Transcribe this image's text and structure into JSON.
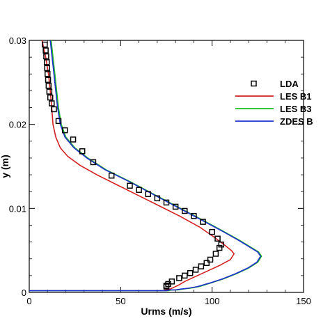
{
  "chart_data": {
    "type": "line",
    "xlabel": "Urms (m/s)",
    "ylabel": "y (m)",
    "xlim": [
      0,
      150
    ],
    "ylim": [
      0,
      0.03
    ],
    "x_ticks": [
      0,
      50,
      100,
      150
    ],
    "y_ticks": [
      0,
      0.01,
      0.02,
      0.03
    ],
    "x_tick_labels": [
      "0",
      "50",
      "100",
      "150"
    ],
    "y_tick_labels": [
      "0",
      "0.01",
      "0.02",
      "0.03"
    ],
    "grid": false,
    "legend_placement": "right",
    "series": [
      {
        "name": "LDA",
        "kind": "scatter",
        "marker": "square-open",
        "color": "#000000",
        "x": [
          8.5,
          9,
          9.3,
          9.6,
          9.8,
          10,
          10.3,
          10.6,
          11,
          11.5,
          12.3,
          13.5,
          16,
          19.5,
          24,
          29,
          35,
          45,
          55,
          60,
          65,
          70,
          75,
          80,
          85,
          90,
          95,
          100,
          103,
          105,
          104,
          102,
          99,
          97,
          94,
          91,
          88,
          85,
          82,
          78,
          76,
          75,
          75
        ],
        "y": [
          0.0295,
          0.0288,
          0.0281,
          0.0274,
          0.0267,
          0.026,
          0.0253,
          0.0246,
          0.0239,
          0.0232,
          0.0225,
          0.0218,
          0.0204,
          0.0193,
          0.0182,
          0.0168,
          0.0155,
          0.0139,
          0.0127,
          0.0122,
          0.0117,
          0.0112,
          0.0107,
          0.0102,
          0.0097,
          0.0091,
          0.0084,
          0.0072,
          0.0064,
          0.0057,
          0.0053,
          0.0046,
          0.0039,
          0.0035,
          0.0031,
          0.0027,
          0.0023,
          0.002,
          0.0017,
          0.0013,
          0.001,
          0.0008,
          0.0007
        ]
      },
      {
        "name": "LES B1",
        "kind": "line",
        "color": "#d42020",
        "x": [
          7,
          9,
          10.5,
          11.5,
          12.3,
          13,
          14.5,
          17,
          21,
          28,
          37,
          48,
          60,
          72,
          83,
          93,
          101,
          107,
          110.5,
          112,
          110,
          104,
          97,
          90,
          85,
          82,
          79,
          77,
          75,
          73,
          40,
          0
        ],
        "y": [
          0.03,
          0.028,
          0.026,
          0.024,
          0.022,
          0.02,
          0.0185,
          0.0172,
          0.0162,
          0.0151,
          0.014,
          0.0128,
          0.0115,
          0.0102,
          0.009,
          0.0078,
          0.0066,
          0.0056,
          0.005,
          0.0046,
          0.0039,
          0.0032,
          0.0025,
          0.0018,
          0.0013,
          0.0009,
          0.0006,
          0.0004,
          0.0003,
          0.0002,
          0.0002,
          0.0002
        ]
      },
      {
        "name": "LES B3",
        "kind": "line",
        "color": "#1ec01e",
        "x": [
          12,
          13,
          14,
          15,
          16,
          17.5,
          20,
          25,
          32,
          42,
          55,
          68,
          81,
          94,
          106,
          115,
          121,
          125.5,
          127,
          125,
          120,
          113,
          106,
          99,
          93,
          88,
          84,
          81,
          78,
          76,
          74,
          40,
          0
        ],
        "y": [
          0.03,
          0.028,
          0.026,
          0.024,
          0.022,
          0.02,
          0.0185,
          0.0172,
          0.016,
          0.0146,
          0.0132,
          0.0117,
          0.0102,
          0.0087,
          0.0073,
          0.0062,
          0.0054,
          0.0048,
          0.0043,
          0.0036,
          0.0029,
          0.0022,
          0.0016,
          0.0011,
          0.0007,
          0.0005,
          0.0004,
          0.0003,
          0.0003,
          0.0002,
          0.0002,
          0.0002,
          0.0002
        ]
      },
      {
        "name": "ZDES B",
        "kind": "line",
        "color": "#1f2fd0",
        "x": [
          11.5,
          12.5,
          13.5,
          14.5,
          15.5,
          17,
          19.5,
          24.5,
          31.5,
          41.5,
          54.5,
          67.5,
          80.5,
          93.5,
          105.5,
          114.5,
          120.5,
          125,
          126.5,
          124.5,
          119.5,
          112.5,
          105.5,
          98.5,
          92,
          87,
          83,
          80,
          77,
          75,
          73,
          40,
          0
        ],
        "y": [
          0.03,
          0.028,
          0.026,
          0.024,
          0.022,
          0.02,
          0.0185,
          0.0172,
          0.016,
          0.0146,
          0.0132,
          0.0117,
          0.0102,
          0.0087,
          0.0073,
          0.0062,
          0.0054,
          0.0048,
          0.0043,
          0.0036,
          0.0029,
          0.0022,
          0.0016,
          0.0011,
          0.0007,
          0.0005,
          0.0004,
          0.0003,
          0.0003,
          0.0002,
          0.0002,
          0.0002,
          0.0002
        ]
      }
    ]
  }
}
